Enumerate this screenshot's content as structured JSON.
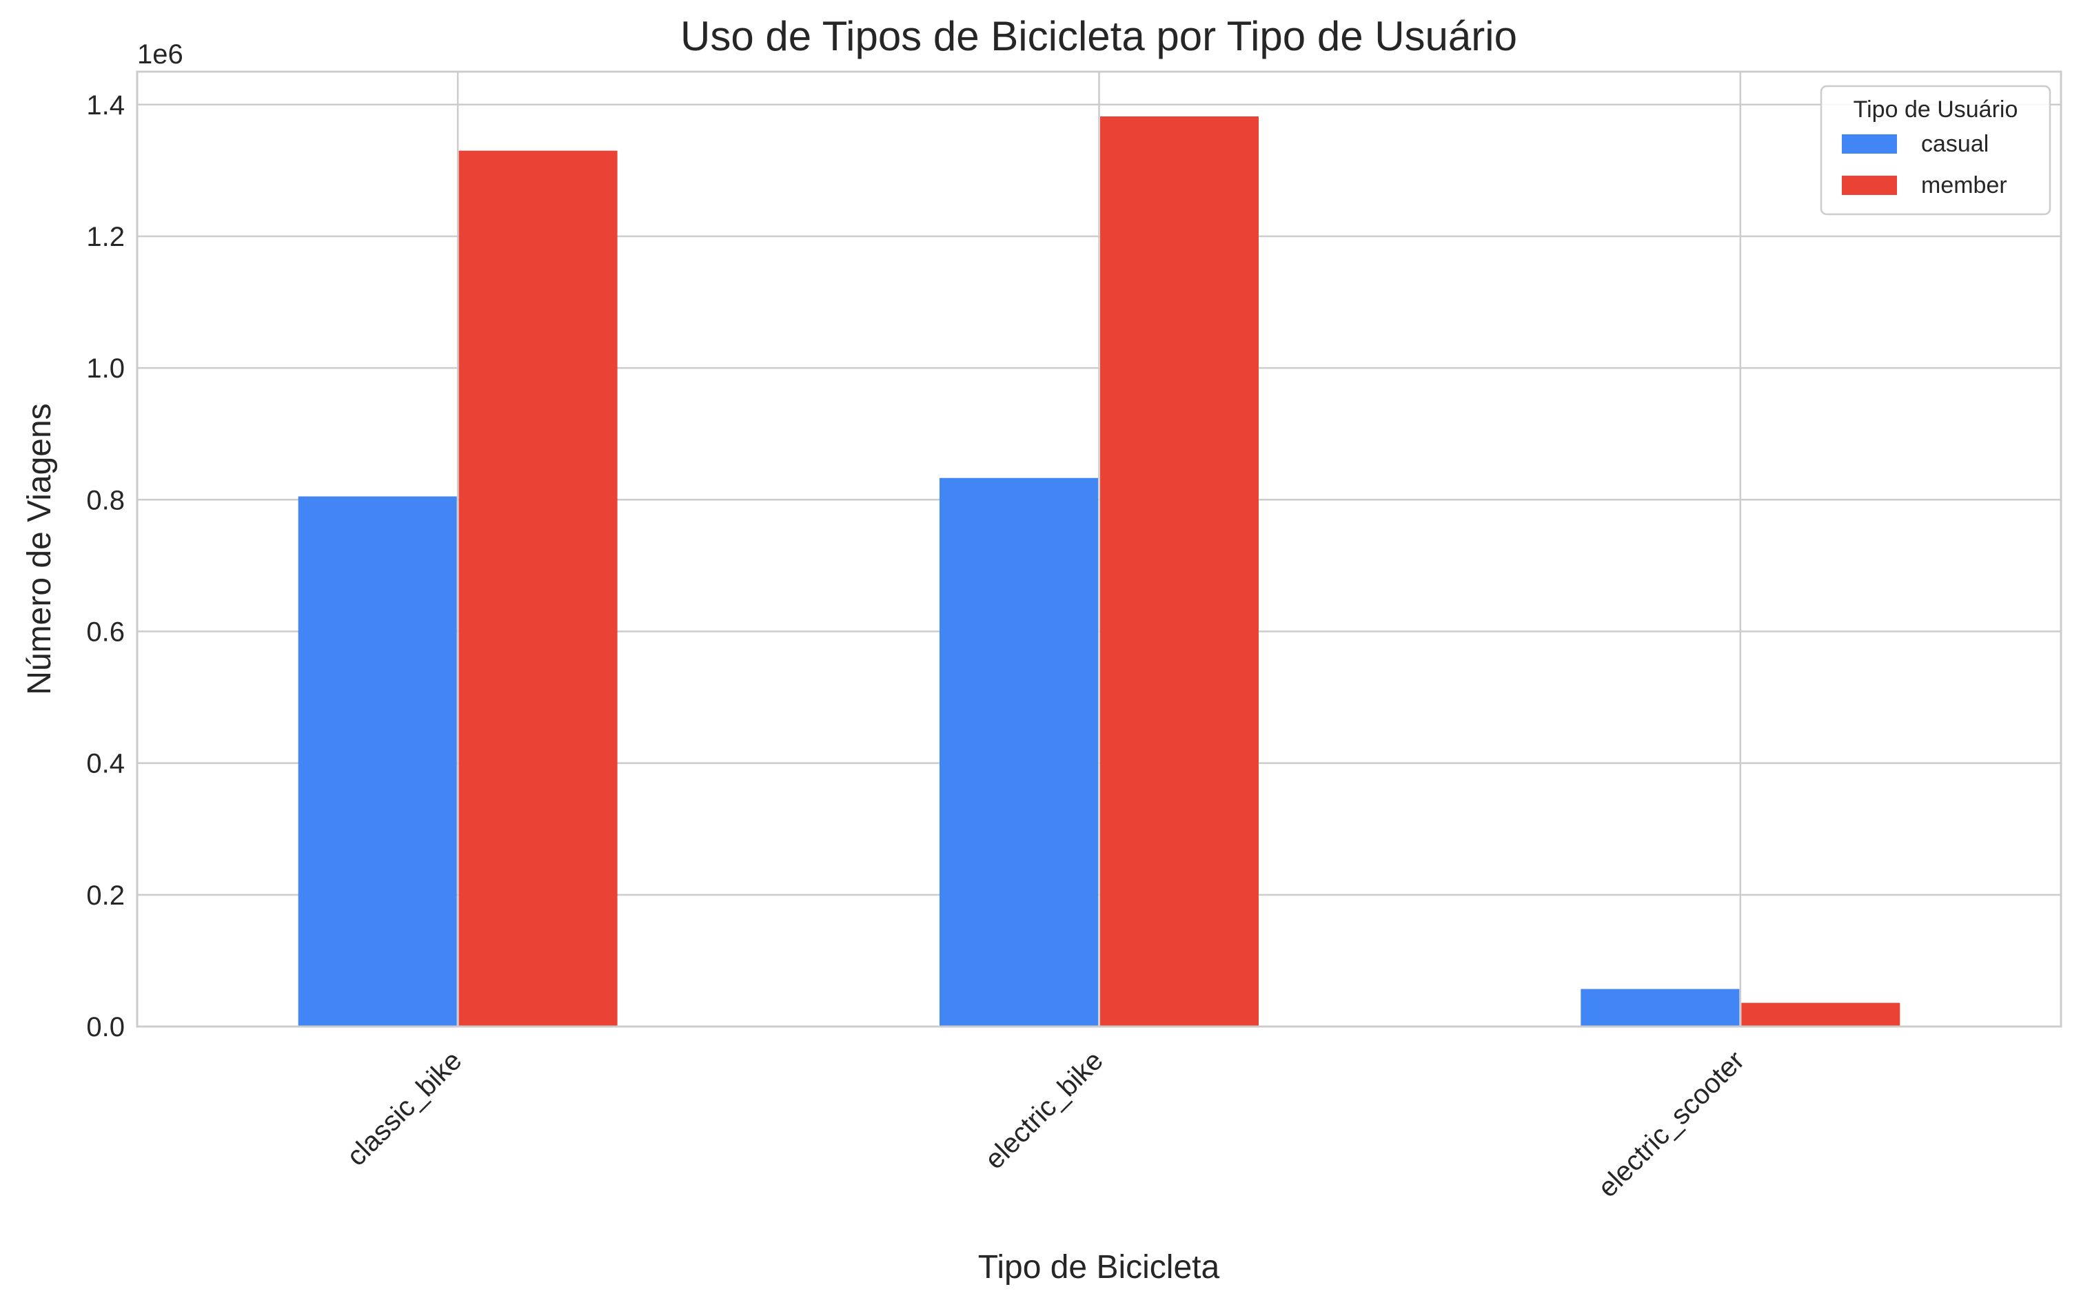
{
  "chart_data": {
    "type": "bar",
    "title": "Uso de Tipos de Bicicleta por Tipo de Usuário",
    "xlabel": "Tipo de Bicicleta",
    "ylabel": "Número de Viagens",
    "y_offset_label": "1e6",
    "categories": [
      "classic_bike",
      "electric_bike",
      "electric_scooter"
    ],
    "series": [
      {
        "name": "casual",
        "color": "#4285f4",
        "values": [
          805000,
          833000,
          57000
        ]
      },
      {
        "name": "member",
        "color": "#ea4335",
        "values": [
          1330000,
          1382000,
          36000
        ]
      }
    ],
    "ylim": [
      0,
      1450000
    ],
    "yticks": [
      0,
      200000,
      400000,
      600000,
      800000,
      1000000,
      1200000,
      1400000
    ],
    "ytick_labels": [
      "0.0",
      "0.2",
      "0.4",
      "0.6",
      "0.8",
      "1.0",
      "1.2",
      "1.4"
    ],
    "grid": true,
    "legend": {
      "title": "Tipo de Usuário",
      "placement": "top-right"
    }
  }
}
